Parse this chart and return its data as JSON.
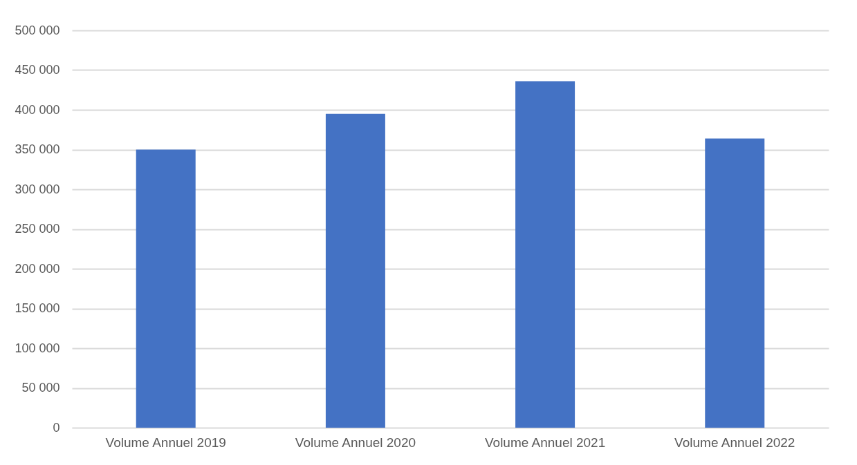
{
  "chart_data": {
    "type": "bar",
    "categories": [
      "Volume Annuel 2019",
      "Volume Annuel 2020",
      "Volume Annuel 2021",
      "Volume Annuel 2022"
    ],
    "values": [
      350000,
      395000,
      436000,
      364000
    ],
    "color": "#4472c4",
    "ylim": [
      0,
      500000
    ],
    "yticks": [
      {
        "value": 0,
        "label": "0"
      },
      {
        "value": 50000,
        "label": "50 000"
      },
      {
        "value": 100000,
        "label": "100 000"
      },
      {
        "value": 150000,
        "label": "150 000"
      },
      {
        "value": 200000,
        "label": "200 000"
      },
      {
        "value": 250000,
        "label": "250 000"
      },
      {
        "value": 300000,
        "label": "300 000"
      },
      {
        "value": 350000,
        "label": "350 000"
      },
      {
        "value": 400000,
        "label": "400 000"
      },
      {
        "value": 450000,
        "label": "450 000"
      },
      {
        "value": 500000,
        "label": "500 000"
      }
    ],
    "grid": "y"
  }
}
